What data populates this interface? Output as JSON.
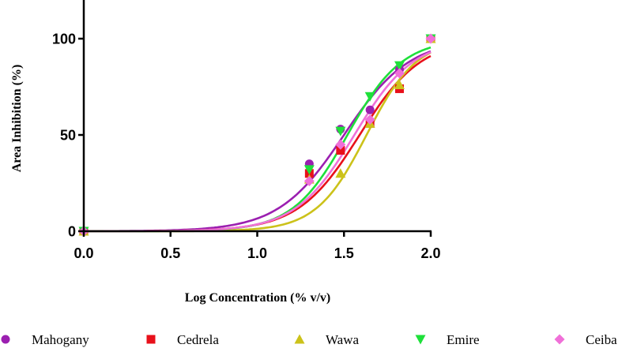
{
  "chart_data": {
    "type": "scatter",
    "title": "",
    "xlabel": "Log Concentration  (% v/v)",
    "ylabel": "Area Inhibition  (%)",
    "xlim": [
      0.0,
      2.0
    ],
    "ylim": [
      0,
      100
    ],
    "xticks": [
      "0.0",
      "0.5",
      "1.0",
      "1.5",
      "2.0"
    ],
    "yticks": [
      "0",
      "50",
      "100"
    ],
    "legend_position": "bottom",
    "series": [
      {
        "name": "Mahogany",
        "color": "#9b1fb0",
        "marker": "circle",
        "x": [
          0.0,
          1.3,
          1.48,
          1.65,
          1.82,
          2.0
        ],
        "y": [
          0,
          35,
          53,
          63,
          84,
          100
        ],
        "fit": {
          "logec50": 1.5,
          "hill": 2.3
        }
      },
      {
        "name": "Cedrela",
        "color": "#e8101a",
        "marker": "square",
        "x": [
          0.0,
          1.3,
          1.48,
          1.65,
          1.82,
          2.0
        ],
        "y": [
          0,
          30,
          42,
          56,
          74,
          100
        ],
        "fit": {
          "logec50": 1.59,
          "hill": 2.45
        }
      },
      {
        "name": "Wawa",
        "color": "#ccc21a",
        "marker": "triangle-up",
        "x": [
          0.0,
          1.3,
          1.48,
          1.65,
          1.82,
          2.0
        ],
        "y": [
          0,
          27,
          30,
          56,
          76,
          100
        ],
        "fit": {
          "logec50": 1.63,
          "hill": 3.0
        }
      },
      {
        "name": "Emire",
        "color": "#1ee03a",
        "marker": "triangle-down",
        "x": [
          0.0,
          1.3,
          1.48,
          1.65,
          1.82,
          2.0
        ],
        "y": [
          0,
          32,
          52,
          70,
          86,
          100
        ],
        "fit": {
          "logec50": 1.52,
          "hill": 2.75
        }
      },
      {
        "name": "Ceiba",
        "color": "#f070d8",
        "marker": "diamond",
        "x": [
          0.0,
          1.3,
          1.48,
          1.65,
          1.82,
          2.0
        ],
        "y": [
          0,
          26,
          45,
          58,
          82,
          100
        ],
        "fit": {
          "logec50": 1.56,
          "hill": 2.55
        }
      }
    ]
  }
}
